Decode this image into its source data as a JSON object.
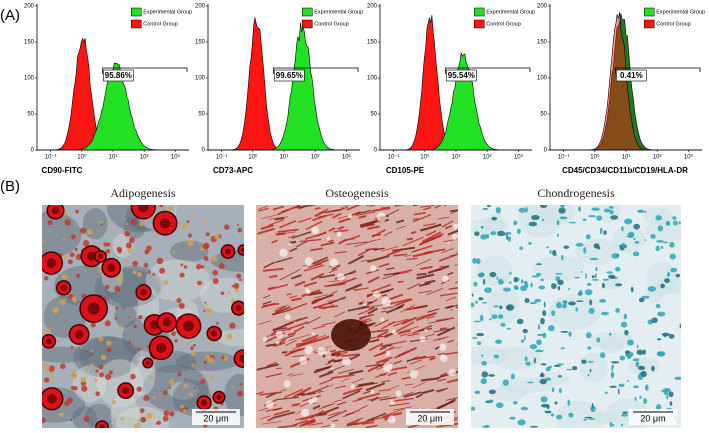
{
  "panel_a": {
    "label": "(A)",
    "legend": {
      "experimental": "Experimental Group",
      "control": "Control Group"
    },
    "yticks": [
      "0",
      "50",
      "100",
      "150",
      "200"
    ],
    "xticks": [
      "10⁻¹",
      "10⁰",
      "10¹",
      "10²",
      "10³"
    ],
    "plots": [
      {
        "x_label": "CD90-FITC",
        "percent": "95.86%"
      },
      {
        "x_label": "CD73-APC",
        "percent": "99.65%"
      },
      {
        "x_label": "CD105-PE",
        "percent": "95.54%"
      },
      {
        "x_label": "CD45/CD34/CD11b/CD19/HLA-DR",
        "percent": "0.41%"
      }
    ]
  },
  "panel_b": {
    "label": "(B)",
    "images": [
      {
        "title": "Adipogenesis",
        "scale": "20 μm"
      },
      {
        "title": "Osteogenesis",
        "scale": "20 μm"
      },
      {
        "title": "Chondrogenesis",
        "scale": "20 μm"
      }
    ]
  }
}
